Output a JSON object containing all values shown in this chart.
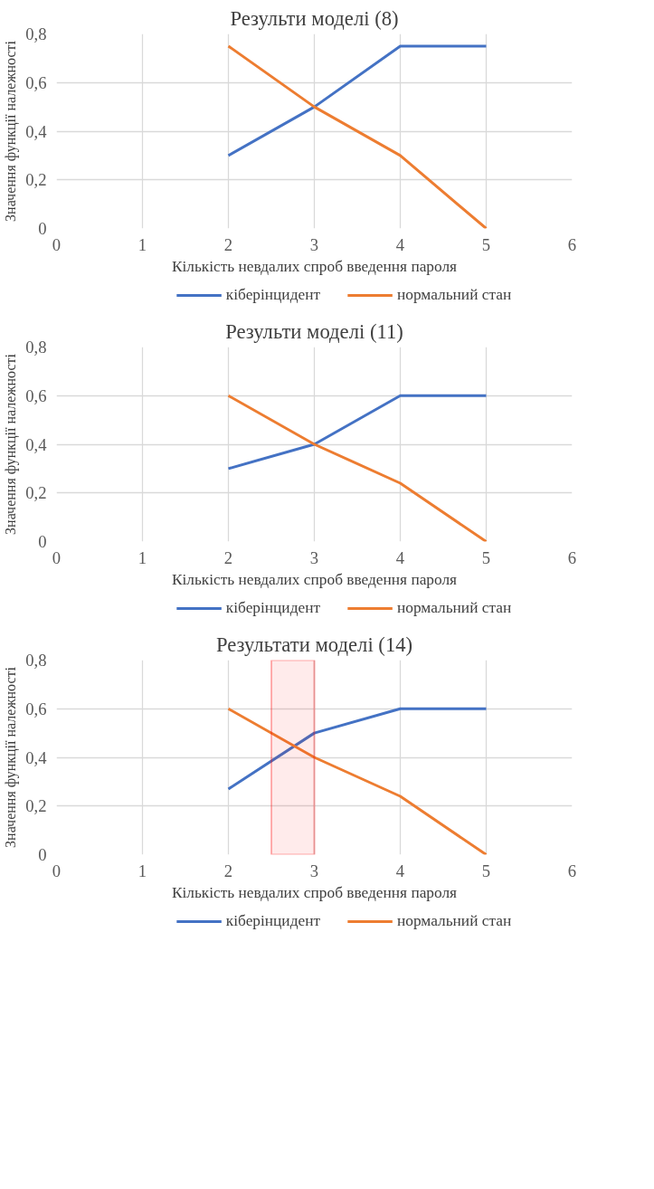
{
  "chart_data": [
    {
      "type": "line",
      "title": "Результи моделі (8)",
      "xlabel": "Кількість невдалих спроб введення пароля",
      "ylabel": "Значення функції належності",
      "x": [
        2,
        3,
        4,
        5
      ],
      "xlim": [
        0,
        6
      ],
      "xticks": [
        0,
        1,
        2,
        3,
        4,
        5,
        6
      ],
      "ylim": [
        0,
        0.8
      ],
      "yticks": [
        0,
        {
          "value": 0.2,
          "label": "0,2"
        },
        {
          "value": 0.4,
          "label": "0,4"
        },
        {
          "value": 0.6,
          "label": "0,6"
        },
        {
          "value": 0.8,
          "label": "0,8"
        }
      ],
      "grid": true,
      "legend": "bottom",
      "marker": "none",
      "line_style": "solid",
      "series": [
        {
          "name": "кіберінцидент",
          "color": "#4472c4",
          "values": [
            0.3,
            0.5,
            0.75,
            0.75
          ]
        },
        {
          "name": "нормальний стан",
          "color": "#ed7d31",
          "values": [
            0.75,
            0.5,
            0.3,
            0
          ]
        }
      ]
    },
    {
      "type": "line",
      "title": "Результи моделі (11)",
      "xlabel": "Кількість невдалих спроб введення пароля",
      "ylabel": "Значення функції належності",
      "x": [
        2,
        3,
        4,
        5
      ],
      "xlim": [
        0,
        6
      ],
      "xticks": [
        0,
        1,
        2,
        3,
        4,
        5,
        6
      ],
      "ylim": [
        0,
        0.8
      ],
      "yticks": [
        0,
        {
          "value": 0.2,
          "label": "0,2"
        },
        {
          "value": 0.4,
          "label": "0,4"
        },
        {
          "value": 0.6,
          "label": "0,6"
        },
        {
          "value": 0.8,
          "label": "0,8"
        }
      ],
      "grid": true,
      "legend": "bottom",
      "marker": "none",
      "line_style": "solid",
      "series": [
        {
          "name": "кіберінцидент",
          "color": "#4472c4",
          "values": [
            0.3,
            0.4,
            0.6,
            0.6
          ]
        },
        {
          "name": "нормальний стан",
          "color": "#ed7d31",
          "values": [
            0.6,
            0.4,
            0.24,
            0
          ]
        }
      ]
    },
    {
      "type": "line",
      "title": "Результати моделі (14)",
      "xlabel": "Кількість невдалих спроб введення пароля",
      "ylabel": "Значення функції належності",
      "x": [
        2,
        3,
        4,
        5
      ],
      "xlim": [
        0,
        6
      ],
      "xticks": [
        0,
        1,
        2,
        3,
        4,
        5,
        6
      ],
      "ylim": [
        0,
        0.8
      ],
      "yticks": [
        0,
        {
          "value": 0.2,
          "label": "0,2"
        },
        {
          "value": 0.4,
          "label": "0,4"
        },
        {
          "value": 0.6,
          "label": "0,6"
        },
        {
          "value": 0.8,
          "label": "0,8"
        }
      ],
      "grid": true,
      "legend": "bottom",
      "marker": "none",
      "line_style": "solid",
      "bands": [
        {
          "axis": "x",
          "from": 2.5,
          "to": 3,
          "color": "#ff0000"
        }
      ],
      "series": [
        {
          "name": "кіберінцидент",
          "color": "#4472c4",
          "values": [
            0.27,
            0.5,
            0.6,
            0.6
          ]
        },
        {
          "name": "нормальний стан",
          "color": "#ed7d31",
          "values": [
            0.6,
            0.4,
            0.24,
            0
          ]
        }
      ]
    }
  ]
}
